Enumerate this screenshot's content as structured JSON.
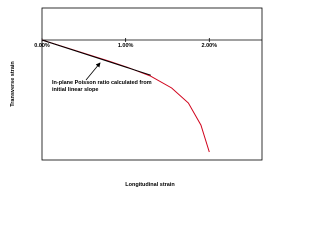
{
  "chart_data": {
    "type": "line",
    "x_label": "Longitudinal strain",
    "y_label": "Transverse strain",
    "annotation": [
      "In-plane Poisson ratio calculated from",
      "initial linear slope"
    ],
    "xlim": [
      0,
      2.63
    ],
    "xticks": [
      {
        "value": 0,
        "label": "0.00%"
      },
      {
        "value": 1,
        "label": "1.00%"
      },
      {
        "value": 2,
        "label": "2.00%"
      }
    ],
    "ylim": [
      -3.75,
      1
    ],
    "series": [
      {
        "color": "#d0021b",
        "x": [
          0,
          0.8,
          1.05,
          1.3,
          1.55,
          1.75,
          1.9,
          2.0
        ],
        "values": [
          0,
          -0.66,
          -0.88,
          -1.13,
          -1.5,
          -1.97,
          -2.66,
          -3.5
        ]
      },
      {
        "color": "#000000",
        "x": [
          0,
          1.3
        ],
        "values": [
          0,
          -1.1
        ]
      }
    ]
  }
}
